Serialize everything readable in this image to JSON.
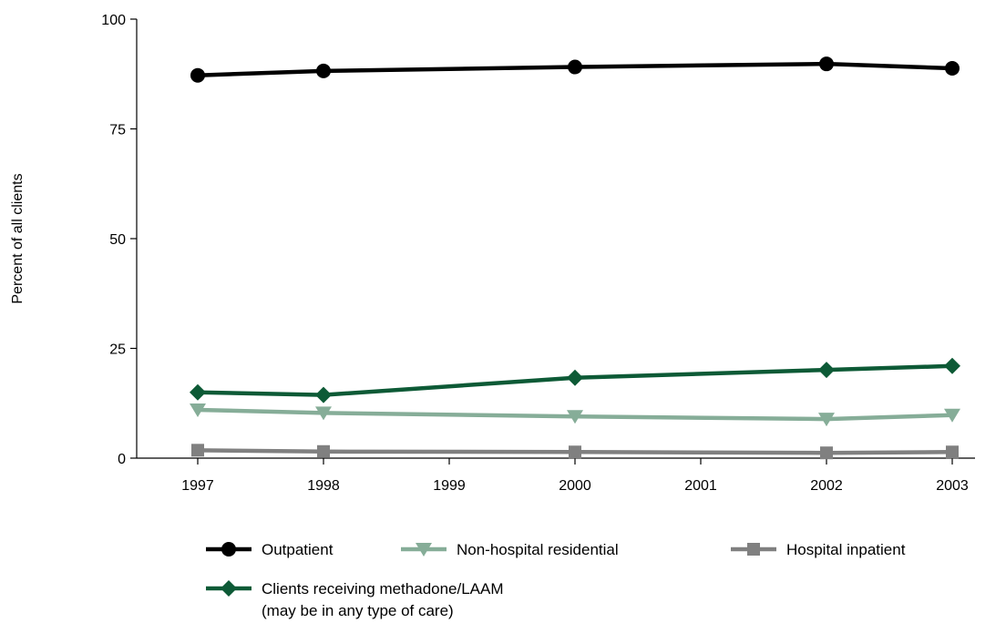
{
  "chart_data": {
    "type": "line",
    "title": "",
    "xlabel": "",
    "ylabel": "Percent of all clients",
    "x": [
      1997,
      1998,
      1999,
      2000,
      2001,
      2002,
      2003
    ],
    "xlim": [
      1997,
      2003
    ],
    "ylim": [
      0,
      100
    ],
    "yticks": [
      0,
      25,
      50,
      75,
      100
    ],
    "grid": false,
    "legend_position": "bottom",
    "series": [
      {
        "name": "Outpatient",
        "marker": "circle",
        "color": "#000000",
        "points": [
          [
            1997,
            87.2
          ],
          [
            1998,
            88.2
          ],
          [
            2000,
            89.1
          ],
          [
            2002,
            89.8
          ],
          [
            2003,
            88.8
          ]
        ]
      },
      {
        "name": "Non-hospital residential",
        "marker": "triangle-down",
        "color": "#86ad98",
        "points": [
          [
            1997,
            11.0
          ],
          [
            1998,
            10.3
          ],
          [
            2000,
            9.5
          ],
          [
            2002,
            8.9
          ],
          [
            2003,
            9.8
          ]
        ]
      },
      {
        "name": "Hospital inpatient",
        "marker": "square",
        "color": "#808080",
        "points": [
          [
            1997,
            1.8
          ],
          [
            1998,
            1.5
          ],
          [
            2000,
            1.4
          ],
          [
            2002,
            1.2
          ],
          [
            2003,
            1.4
          ]
        ]
      },
      {
        "name": "Clients receiving methadone/LAAM",
        "name_line2": "(may be in any type of care)",
        "marker": "diamond",
        "color": "#0d5a36",
        "points": [
          [
            1997,
            15.0
          ],
          [
            1998,
            14.4
          ],
          [
            2000,
            18.3
          ],
          [
            2002,
            20.1
          ],
          [
            2003,
            21.0
          ]
        ]
      }
    ]
  }
}
